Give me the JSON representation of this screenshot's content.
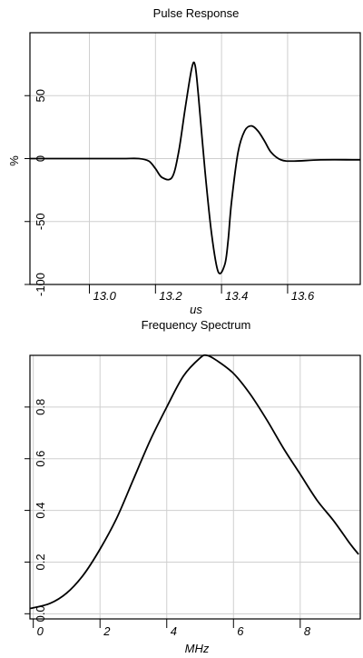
{
  "chart_data": [
    {
      "type": "line",
      "title": "Pulse Response",
      "xlabel": "us",
      "ylabel": "%",
      "xlim": [
        12.82,
        13.82
      ],
      "ylim": [
        -100,
        100
      ],
      "grid": true,
      "x_ticks": [
        {
          "value": 13.0,
          "label": "13.0"
        },
        {
          "value": 13.2,
          "label": "13.2"
        },
        {
          "value": 13.4,
          "label": "13.4"
        },
        {
          "value": 13.6,
          "label": "13.6"
        }
      ],
      "y_ticks": [
        {
          "value": 50,
          "label": "50"
        },
        {
          "value": 0,
          "label": "0"
        },
        {
          "value": -50,
          "label": "-50"
        },
        {
          "value": -100,
          "label": "-100"
        }
      ],
      "series": [
        {
          "x": [
            12.82,
            13.0,
            13.1,
            13.15,
            13.18,
            13.2,
            13.22,
            13.25,
            13.27,
            13.29,
            13.31,
            13.32,
            13.33,
            13.35,
            13.37,
            13.39,
            13.41,
            13.42,
            13.43,
            13.45,
            13.47,
            13.49,
            13.51,
            13.53,
            13.55,
            13.58,
            13.62,
            13.7,
            13.82
          ],
          "y": [
            0,
            0,
            0,
            0,
            -2,
            -8,
            -15,
            -15,
            5,
            40,
            72,
            74,
            50,
            -10,
            -60,
            -90,
            -84,
            -65,
            -35,
            5,
            22,
            26,
            22,
            14,
            5,
            -1,
            -2,
            -1,
            -1
          ]
        }
      ]
    },
    {
      "type": "line",
      "title": "Frequency Spectrum",
      "xlabel": "MHz",
      "ylabel": "",
      "xlim": [
        -0.1,
        9.8
      ],
      "ylim": [
        -0.02,
        1.0
      ],
      "grid": true,
      "x_ticks": [
        {
          "value": 0,
          "label": "0"
        },
        {
          "value": 2,
          "label": "2"
        },
        {
          "value": 4,
          "label": "4"
        },
        {
          "value": 6,
          "label": "6"
        },
        {
          "value": 8,
          "label": "8"
        }
      ],
      "y_ticks": [
        {
          "value": 0.0,
          "label": "0.0"
        },
        {
          "value": 0.2,
          "label": "0.2"
        },
        {
          "value": 0.4,
          "label": "0.4"
        },
        {
          "value": 0.6,
          "label": "0.6"
        },
        {
          "value": 0.8,
          "label": "0.8"
        }
      ],
      "series": [
        {
          "x": [
            -0.1,
            0.5,
            1,
            1.5,
            2,
            2.5,
            3,
            3.5,
            4,
            4.5,
            5,
            5.2,
            5.5,
            6,
            6.5,
            7,
            7.5,
            8,
            8.5,
            9,
            9.5,
            9.75
          ],
          "y": [
            0.02,
            0.04,
            0.08,
            0.15,
            0.25,
            0.37,
            0.52,
            0.67,
            0.8,
            0.92,
            0.99,
            1.0,
            0.98,
            0.93,
            0.85,
            0.75,
            0.64,
            0.54,
            0.44,
            0.36,
            0.27,
            0.23
          ]
        }
      ]
    }
  ]
}
